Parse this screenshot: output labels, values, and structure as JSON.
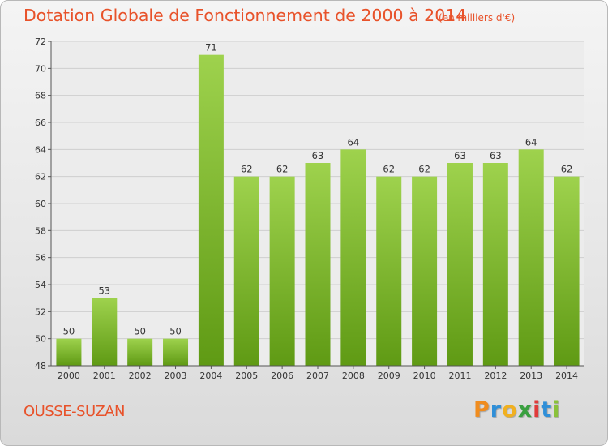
{
  "title": "Dotation Globale de Fonctionnement de 2000 à 2014",
  "subtitle": "(en milliers d'€)",
  "commune": "OUSSE-SUZAN",
  "brand": {
    "letters": [
      "P",
      "r",
      "o",
      "x",
      "i",
      "t",
      "i"
    ],
    "colors": [
      "#f08c1e",
      "#2f8fd8",
      "#f0b020",
      "#3aa040",
      "#e03a3a",
      "#2f8fd8",
      "#8ac23a"
    ]
  },
  "colors": {
    "title": "#e8522a",
    "bar_light": "#9ed24d",
    "bar_dark": "#5f9a14",
    "grid": "#cfcfcf"
  },
  "chart_data": {
    "type": "bar",
    "categories": [
      "2000",
      "2001",
      "2002",
      "2003",
      "2004",
      "2005",
      "2006",
      "2007",
      "2008",
      "2009",
      "2010",
      "2011",
      "2012",
      "2013",
      "2014"
    ],
    "values": [
      50,
      53,
      50,
      50,
      71,
      62,
      62,
      63,
      64,
      62,
      62,
      63,
      63,
      64,
      62
    ],
    "ylim": [
      48,
      72
    ],
    "yticks": [
      48,
      50,
      52,
      54,
      56,
      58,
      60,
      62,
      64,
      66,
      68,
      70,
      72
    ],
    "grid": true
  }
}
